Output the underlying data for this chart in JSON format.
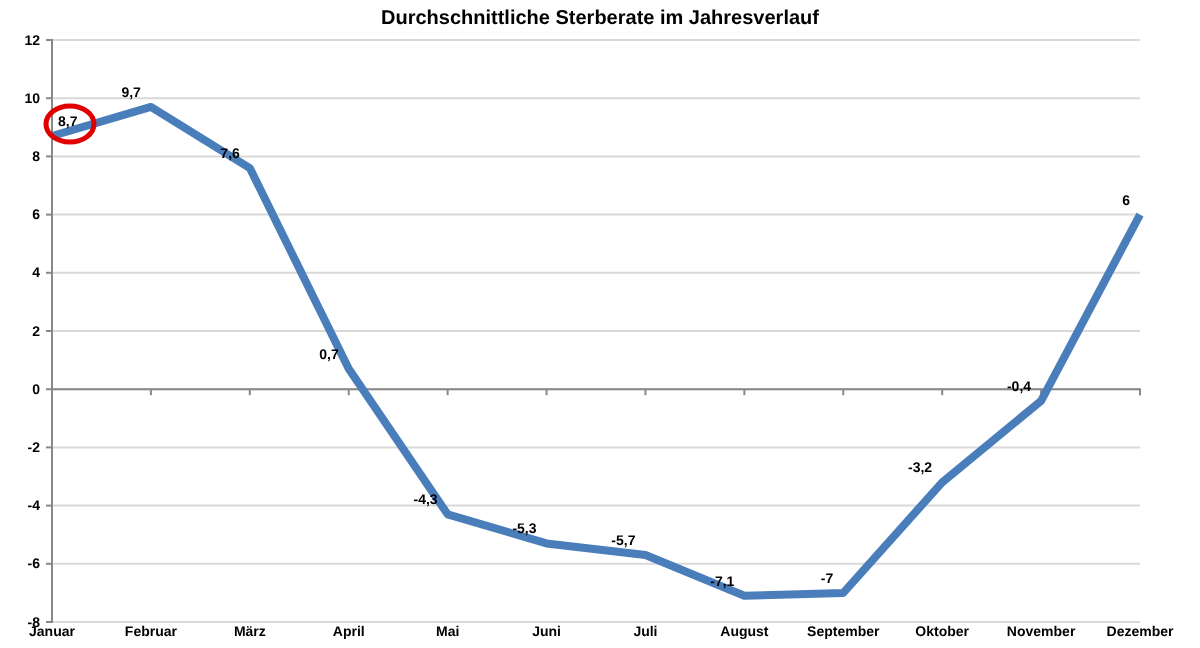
{
  "chart_data": {
    "type": "line",
    "title": "Durchschnittliche Sterberate im Jahresverlauf",
    "categories": [
      "Januar",
      "Februar",
      "März",
      "April",
      "Mai",
      "Juni",
      "Juli",
      "August",
      "September",
      "Oktober",
      "November",
      "Dezember"
    ],
    "series": [
      {
        "color": "#4a7ebb",
        "values": [
          8.7,
          9.7,
          7.6,
          0.7,
          -4.3,
          -5.3,
          -5.7,
          -7.1,
          -7,
          -3.2,
          -0.4,
          6
        ],
        "value_labels": [
          "8,7",
          "9,7",
          "7,6",
          "0,7",
          "-4,3",
          "-5,3",
          "-5,7",
          "-7,1",
          "-7",
          "-3,2",
          "-0,4",
          "6"
        ]
      }
    ],
    "ylim": [
      -8,
      12
    ],
    "yticks": [
      -8,
      -6,
      -4,
      -2,
      0,
      2,
      4,
      6,
      8,
      10,
      12
    ],
    "grid": "y",
    "legend": false,
    "marker": "none",
    "line_style": "solid"
  }
}
